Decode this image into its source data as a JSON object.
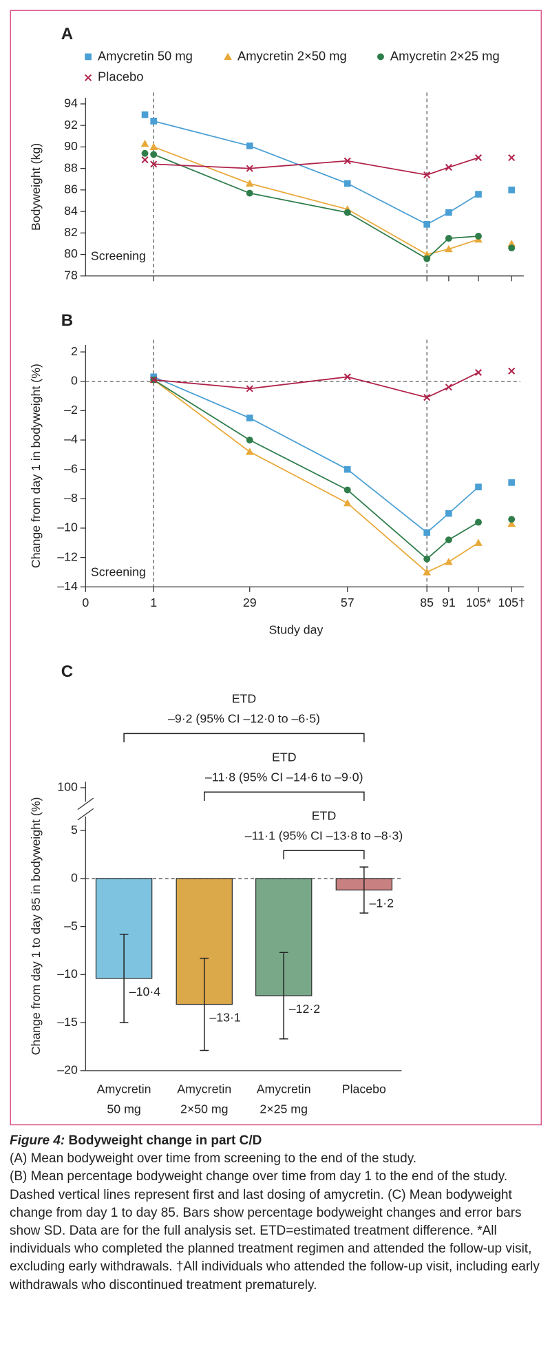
{
  "chart_data": [
    {
      "type": "line",
      "panel": "A",
      "ylabel": "Bodyweight (kg)",
      "annotation": "Screening",
      "categories": [
        null,
        null,
        null,
        null,
        null,
        null,
        null,
        null
      ],
      "ylim": [
        78,
        94
      ],
      "yticks": [
        78,
        80,
        82,
        84,
        86,
        88,
        90,
        92,
        94
      ],
      "legend": "top",
      "series": [
        {
          "name": "Amycretin 50 mg",
          "color": "#4a9fd4",
          "marker": "square",
          "values": [
            93.0,
            92.4,
            90.1,
            86.6,
            82.8,
            83.9,
            85.6,
            86.0
          ]
        },
        {
          "name": "Amycretin 2×50 mg",
          "color": "#e8a93a",
          "marker": "triangle",
          "values": [
            90.3,
            90.0,
            86.6,
            84.2,
            80.0,
            80.5,
            81.4,
            81.0
          ]
        },
        {
          "name": "Amycretin 2×25 mg",
          "color": "#2e7d4a",
          "marker": "circle",
          "values": [
            89.4,
            89.3,
            85.7,
            83.9,
            79.6,
            81.5,
            81.7,
            80.6
          ]
        },
        {
          "name": "Placebo",
          "color": "#b0234b",
          "marker": "x",
          "values": [
            88.8,
            88.4,
            88.0,
            88.7,
            87.4,
            88.1,
            89.0,
            89.0
          ]
        }
      ]
    },
    {
      "type": "line",
      "panel": "B",
      "ylabel": "Change from day 1 in bodyweight (%)",
      "xlabel": "Study day",
      "annotation": "Screening",
      "categories": [
        "0",
        "1",
        "29",
        "57",
        "85",
        "91",
        "105*",
        "105†"
      ],
      "ylim": [
        -14,
        2
      ],
      "yticks": [
        2,
        0,
        {
          "value": -2,
          "label": "–2"
        },
        {
          "value": -4,
          "label": "–4"
        },
        {
          "value": -6,
          "label": "–6"
        },
        {
          "value": -8,
          "label": "–8"
        },
        {
          "value": -10,
          "label": "–10"
        },
        {
          "value": -12,
          "label": "–12"
        },
        {
          "value": -14,
          "label": "–14"
        }
      ],
      "series": [
        {
          "color": "#4a9fd4",
          "marker": "square",
          "values": [
            null,
            0.3,
            -2.5,
            -6.0,
            -10.3,
            -9.0,
            -7.2,
            -6.9
          ]
        },
        {
          "color": "#e8a93a",
          "marker": "triangle",
          "values": [
            null,
            0.1,
            -4.8,
            -8.3,
            -13.0,
            -12.3,
            -11.0,
            -9.7
          ]
        },
        {
          "color": "#2e7d4a",
          "marker": "circle",
          "values": [
            null,
            0.1,
            -4.0,
            -7.4,
            -12.1,
            -10.8,
            -9.6,
            -9.4
          ]
        },
        {
          "color": "#b0234b",
          "marker": "x",
          "values": [
            null,
            0.1,
            -0.5,
            0.3,
            -1.1,
            -0.4,
            0.6,
            0.7
          ]
        }
      ]
    },
    {
      "type": "bar",
      "panel": "C",
      "ylabel": "Change from day 1 to day 85 in bodyweight (%)",
      "categories": [
        [
          "Amycretin",
          "50 mg"
        ],
        [
          "Amycretin",
          "2×50 mg"
        ],
        [
          "Amycretin",
          "2×25 mg"
        ],
        [
          "Placebo"
        ]
      ],
      "values": [
        -10.4,
        -13.1,
        -12.2,
        -1.2
      ],
      "value_labels": [
        "–10·4",
        "–13·1",
        "–12·2",
        "–1·2"
      ],
      "errors": [
        4.6,
        4.8,
        4.5,
        2.4
      ],
      "colors": [
        "#7ec4e0",
        "#dba84a",
        "#78a888",
        "#c98080"
      ],
      "ylim": [
        -20,
        5
      ],
      "yticks": [
        5,
        0,
        {
          "value": -5,
          "label": "–5"
        },
        {
          "value": -10,
          "label": "–10"
        },
        {
          "value": -15,
          "label": "–15"
        },
        {
          "value": -20,
          "label": "–20"
        }
      ],
      "break_tick": 100,
      "comparisons": [
        {
          "label": "ETD",
          "text": "–9·2 (95% CI –12·0 to –6·5)"
        },
        {
          "label": "ETD",
          "text": "–11·8 (95% CI –14·6 to –9·0)"
        },
        {
          "label": "ETD",
          "text": "–11·1 (95% CI –13·8 to –8·3)"
        }
      ]
    }
  ],
  "caption": {
    "label": "Figure 4:",
    "title": "Bodyweight change in part C/D",
    "paragraphs": [
      "(A) Mean bodyweight over time from screening to the end of the study.",
      "(B) Mean percentage bodyweight change over time from day 1 to the end of the study. Dashed vertical lines represent first and last dosing of amycretin. (C) Mean bodyweight change from day 1 to day 85. Bars show percentage bodyweight changes and error bars show SD. Data are for the full analysis set. ETD=estimated treatment difference. *All individuals who completed the planned treatment regimen and attended the follow-up visit, excluding early withdrawals. †All individuals who attended the follow-up visit, including early withdrawals who discontinued treatment prematurely."
    ]
  }
}
